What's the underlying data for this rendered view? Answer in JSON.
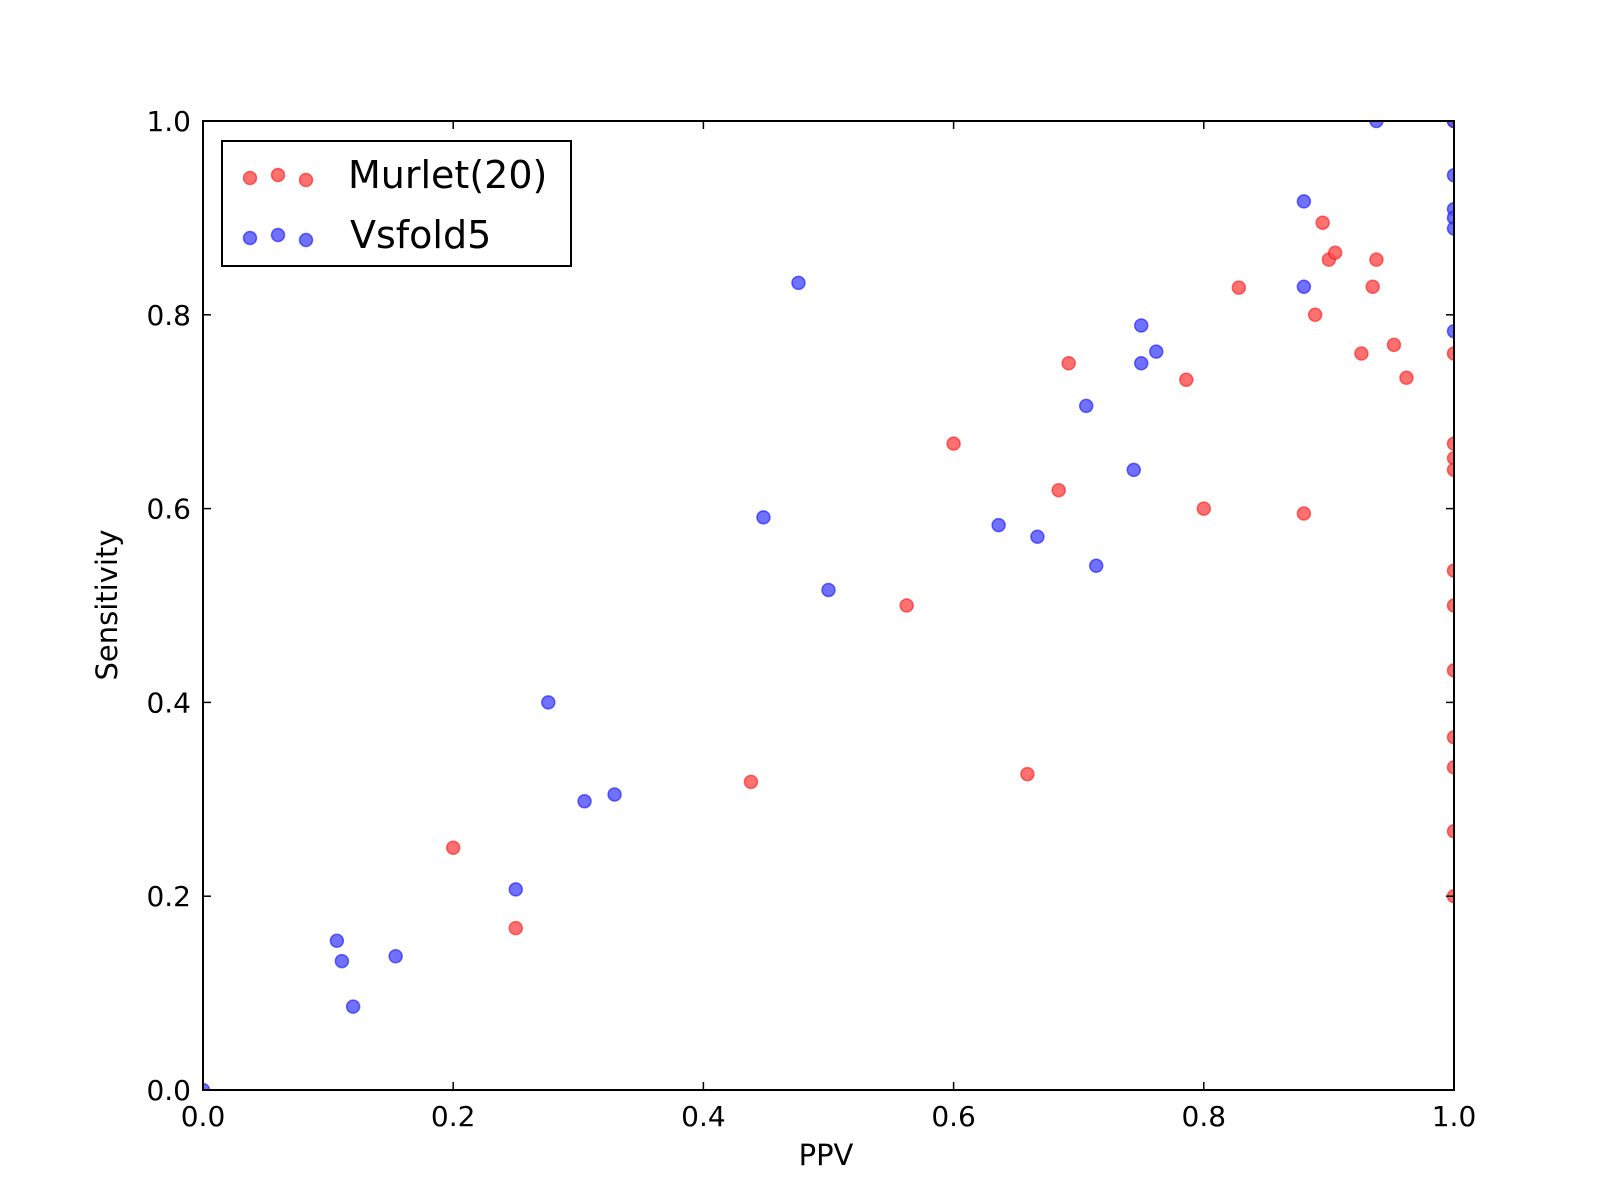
{
  "chart_data": {
    "type": "scatter",
    "title": "",
    "xlabel": "PPV",
    "ylabel": "Sensitivity",
    "xlim": [
      0.0,
      1.0
    ],
    "ylim": [
      0.0,
      1.0
    ],
    "xticks": [
      "0.0",
      "0.2",
      "0.4",
      "0.6",
      "0.8",
      "1.0"
    ],
    "yticks": [
      "0.0",
      "0.2",
      "0.4",
      "0.6",
      "0.8",
      "1.0"
    ],
    "grid": false,
    "legend_position": "upper-left",
    "series": [
      {
        "name": "Murlet(20)",
        "color": "#ff4d4d",
        "edge_color": "#ff0000",
        "points": [
          [
            0.2,
            0.25
          ],
          [
            0.25,
            0.167
          ],
          [
            0.438,
            0.318
          ],
          [
            0.5625,
            0.5
          ],
          [
            0.6,
            0.667
          ],
          [
            0.659,
            0.326
          ],
          [
            0.684,
            0.619
          ],
          [
            0.692,
            0.75
          ],
          [
            0.786,
            0.733
          ],
          [
            0.8,
            0.6
          ],
          [
            0.828,
            0.828
          ],
          [
            0.88,
            0.595
          ],
          [
            0.889,
            0.8
          ],
          [
            0.895,
            0.895
          ],
          [
            0.9,
            0.857
          ],
          [
            0.905,
            0.864
          ],
          [
            0.926,
            0.76
          ],
          [
            0.935,
            0.829
          ],
          [
            0.938,
            0.857
          ],
          [
            0.952,
            0.769
          ],
          [
            0.962,
            0.735
          ],
          [
            1.0,
            1.0
          ],
          [
            1.0,
            0.76
          ],
          [
            1.0,
            0.667
          ],
          [
            1.0,
            0.652
          ],
          [
            1.0,
            0.64
          ],
          [
            1.0,
            0.536
          ],
          [
            1.0,
            0.5
          ],
          [
            1.0,
            0.433
          ],
          [
            1.0,
            0.364
          ],
          [
            1.0,
            0.333
          ],
          [
            1.0,
            0.267
          ],
          [
            1.0,
            0.2
          ]
        ]
      },
      {
        "name": "Vsfold5",
        "color": "#4d4dff",
        "edge_color": "#0000ff",
        "points": [
          [
            0.0,
            0.0
          ],
          [
            0.107,
            0.154
          ],
          [
            0.111,
            0.133
          ],
          [
            0.12,
            0.086
          ],
          [
            0.154,
            0.138
          ],
          [
            0.25,
            0.207
          ],
          [
            0.276,
            0.4
          ],
          [
            0.305,
            0.298
          ],
          [
            0.329,
            0.305
          ],
          [
            0.448,
            0.591
          ],
          [
            0.476,
            0.833
          ],
          [
            0.5,
            0.516
          ],
          [
            0.636,
            0.583
          ],
          [
            0.667,
            0.571
          ],
          [
            0.706,
            0.706
          ],
          [
            0.714,
            0.541
          ],
          [
            0.744,
            0.64
          ],
          [
            0.75,
            0.789
          ],
          [
            0.75,
            0.75
          ],
          [
            0.762,
            0.762
          ],
          [
            0.88,
            0.917
          ],
          [
            0.88,
            0.829
          ],
          [
            0.938,
            1.0
          ],
          [
            1.0,
            0.944
          ],
          [
            1.0,
            0.909
          ],
          [
            1.0,
            0.9
          ],
          [
            1.0,
            0.889
          ],
          [
            1.0,
            0.783
          ],
          [
            1.0,
            1.0
          ]
        ]
      }
    ]
  }
}
